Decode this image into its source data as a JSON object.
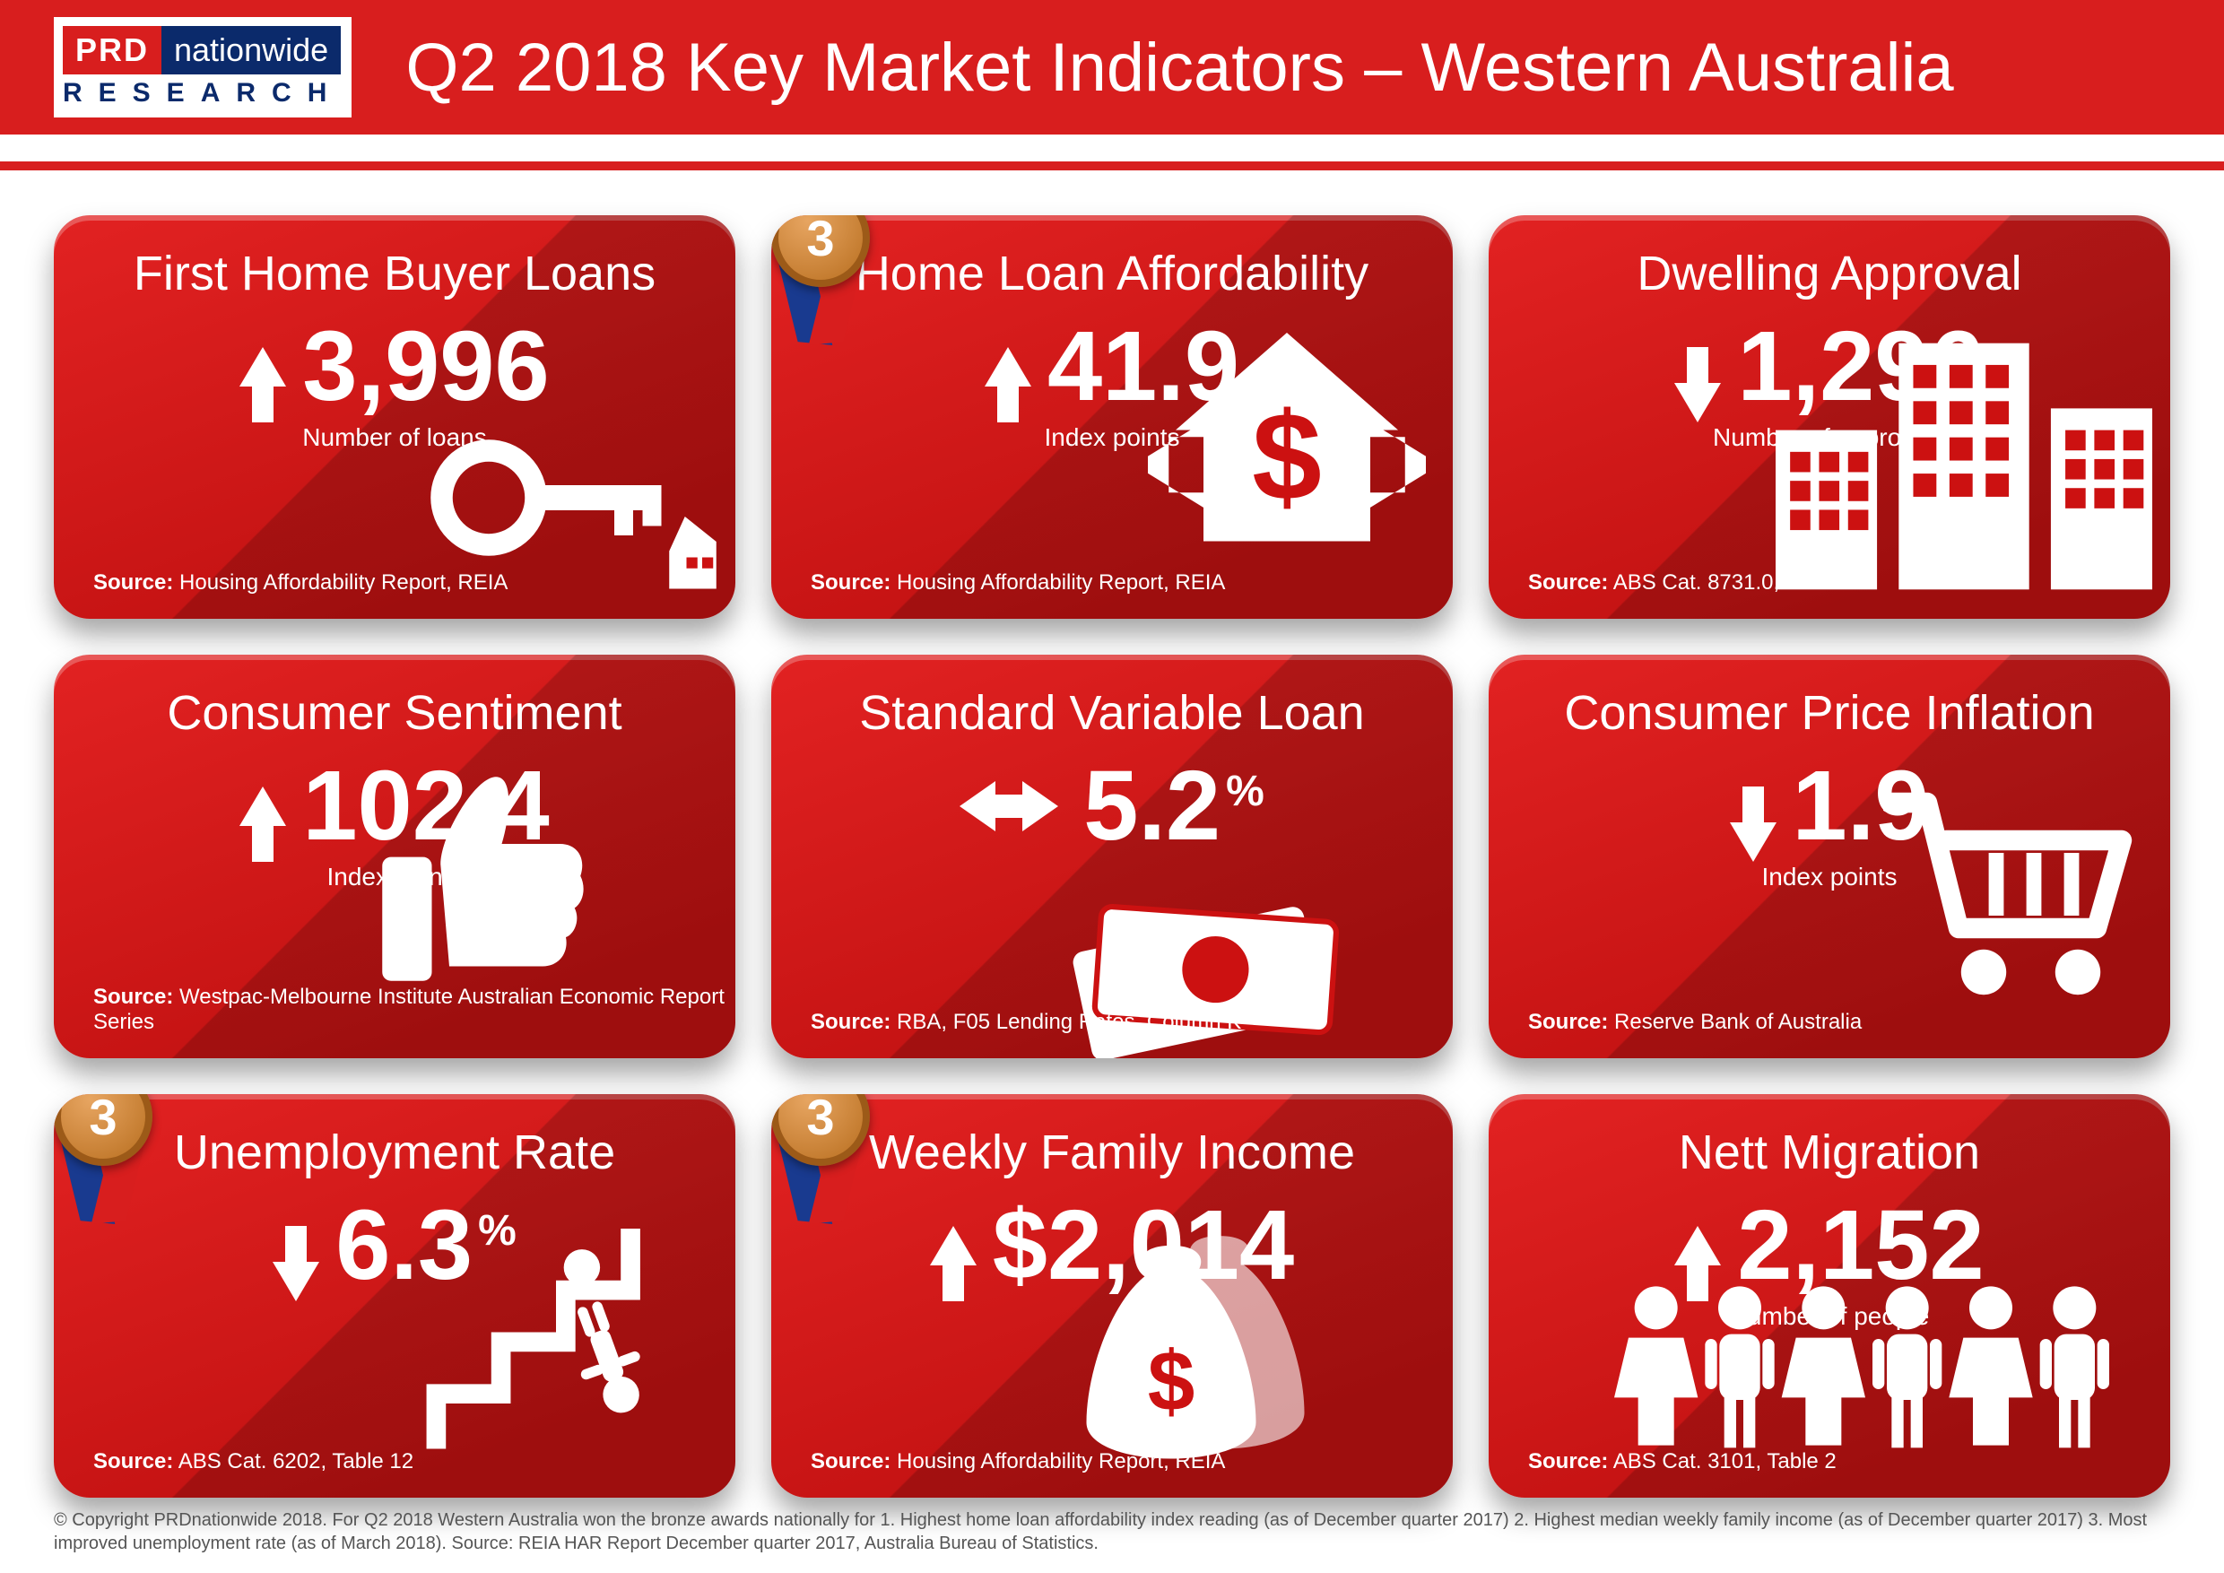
{
  "header": {
    "logo_prd": "PRD",
    "logo_nationwide": "nationwide",
    "logo_research": "RESEARCH",
    "title": "Q2 2018 Key Market Indicators – Western Australia"
  },
  "cards": [
    {
      "title": "First Home Buyer Loans",
      "direction": "up",
      "value": "3,996",
      "unit": "",
      "sublabel": "Number of loans",
      "source": "Housing Affordability Report, REIA",
      "badge": null,
      "icon": "key-house"
    },
    {
      "title": "Home Loan Affordability",
      "direction": "up",
      "value": "41.9",
      "unit": "",
      "sublabel": "Index points",
      "source": "Housing Affordability Report, REIA",
      "badge": "3",
      "icon": "house-dollar"
    },
    {
      "title": "Dwelling Approval",
      "direction": "down",
      "value": "1,296",
      "unit": "",
      "sublabel": "Number of approvals",
      "source": "ABS Cat. 8731.0, Table 7",
      "badge": null,
      "icon": "buildings"
    },
    {
      "title": "Consumer Sentiment",
      "direction": "up",
      "value": "102.4",
      "unit": "",
      "sublabel": "Index points",
      "source": "Westpac-Melbourne Institute Australian Economic Report Series",
      "badge": null,
      "icon": "thumbs-up"
    },
    {
      "title": "Standard Variable Loan",
      "direction": "both",
      "value": "5.2",
      "unit": "%",
      "sublabel": "",
      "source": "RBA, F05 Lending Rates, Column K",
      "badge": null,
      "icon": "cash"
    },
    {
      "title": "Consumer Price Inflation",
      "direction": "down",
      "value": "1.9",
      "unit": "",
      "sublabel": "Index points",
      "source": "Reserve Bank of Australia",
      "badge": null,
      "icon": "cart"
    },
    {
      "title": "Unemployment Rate",
      "direction": "down",
      "value": "6.3",
      "unit": "%",
      "sublabel": "",
      "source": "ABS Cat. 6202, Table 12",
      "badge": "3",
      "icon": "stairs-fall"
    },
    {
      "title": "Weekly Family Income",
      "direction": "up",
      "value": "$2,014",
      "unit": "",
      "sublabel": "",
      "source": "Housing Affordability Report, REIA",
      "badge": "3",
      "icon": "money-bags"
    },
    {
      "title": "Nett Migration",
      "direction": "up",
      "value": "2,152",
      "unit": "",
      "sublabel": "Number of people",
      "source": "ABS Cat. 3101, Table 2",
      "badge": null,
      "icon": "people"
    }
  ],
  "badge_number": "3",
  "colors": {
    "header_bg": "#d81e1e",
    "card_gradient_from": "#e22222",
    "card_gradient_to": "#c11111",
    "logo_blue": "#0b2a6b",
    "badge_bronze": "#b96f20",
    "white": "#ffffff"
  },
  "footer": "© Copyright PRDnationwide 2018. For Q2 2018 Western Australia won the bronze awards nationally for 1. Highest home loan affordability index reading (as of December quarter 2017) 2. Highest median weekly family income (as of December quarter 2017)  3. Most improved unemployment rate (as of March 2018). Source: REIA HAR Report December quarter 2017, Australia Bureau of Statistics.",
  "source_label": "Source:"
}
